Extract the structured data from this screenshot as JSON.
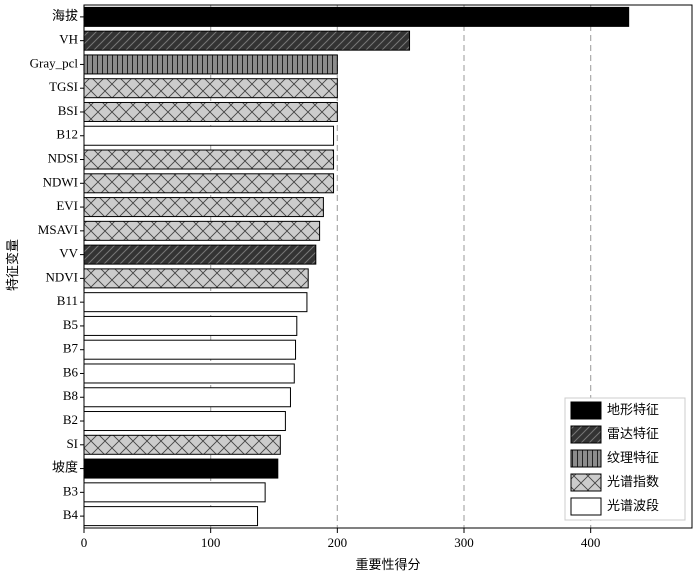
{
  "chart_data": {
    "type": "barh",
    "x_label": "重要性得分",
    "y_label": "特征变量",
    "categories": [
      "海拔",
      "VH",
      "Gray_pcl",
      "TGSI",
      "BSI",
      "B12",
      "NDSI",
      "NDWI",
      "EVI",
      "MSAVI",
      "VV",
      "NDVI",
      "B11",
      "B5",
      "B7",
      "B6",
      "B8",
      "B2",
      "SI",
      "坡度",
      "B3",
      "B4"
    ],
    "series": [
      {
        "name": "地形特征",
        "color": "#000000",
        "hatch": null,
        "values": [
          430,
          null,
          null,
          null,
          null,
          null,
          null,
          null,
          null,
          null,
          null,
          null,
          null,
          null,
          null,
          null,
          null,
          null,
          null,
          153,
          null,
          null
        ]
      },
      {
        "name": "雷达特征",
        "color": "#333333",
        "hatch": "/",
        "values": [
          null,
          257,
          null,
          null,
          null,
          null,
          null,
          null,
          null,
          null,
          183,
          null,
          null,
          null,
          null,
          null,
          null,
          null,
          null,
          null,
          null,
          null
        ]
      },
      {
        "name": "纹理特征",
        "color": "#8c8c8c",
        "hatch": "|",
        "values": [
          null,
          null,
          200,
          null,
          null,
          null,
          null,
          null,
          null,
          null,
          null,
          null,
          null,
          null,
          null,
          null,
          null,
          null,
          null,
          null,
          null,
          null
        ]
      },
      {
        "name": "光谱指数",
        "color": "#cccccc",
        "hatch": "x",
        "values": [
          null,
          null,
          null,
          200,
          200,
          null,
          197,
          197,
          189,
          186,
          null,
          177,
          null,
          null,
          null,
          null,
          null,
          null,
          155,
          null,
          null,
          null
        ]
      },
      {
        "name": "光谱波段",
        "color": "#ffffff",
        "hatch": null,
        "values": [
          null,
          null,
          null,
          null,
          null,
          197,
          null,
          null,
          null,
          null,
          null,
          null,
          176,
          168,
          167,
          166,
          163,
          159,
          null,
          null,
          143,
          137
        ]
      }
    ],
    "xlim": [
      0,
      480
    ],
    "xticks": [
      0,
      100,
      200,
      300,
      400
    ],
    "grid": true,
    "legend": "lower right"
  }
}
